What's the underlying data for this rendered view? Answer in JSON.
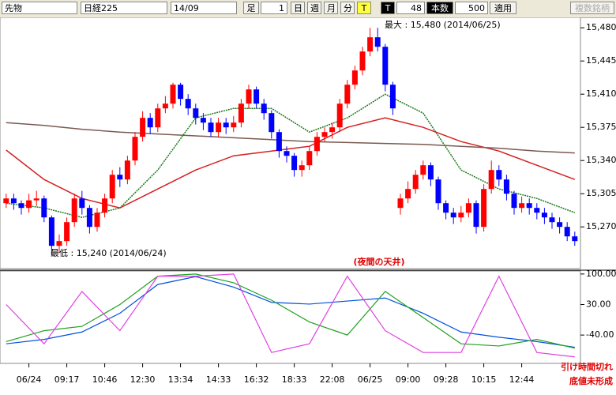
{
  "toolbar": {
    "market": "先物",
    "index": "日経225",
    "month": "14/09",
    "bar_label": "足",
    "bar_count": "1",
    "day": "日",
    "week": "週",
    "month_btn": "月",
    "minute": "分",
    "tick": "T",
    "t_label": "T",
    "t_value": "48",
    "count_label": "本数",
    "count_value": "500",
    "apply": "適用",
    "multi": "複数銘柄"
  },
  "chart_data": [
    {
      "type": "candlestick",
      "up_color": "#ff0000",
      "down_color": "#0000ff",
      "categories": [
        null,
        null,
        null,
        "06/24",
        null,
        null,
        null,
        null,
        "09:17",
        null,
        null,
        null,
        null,
        "10:46",
        null,
        null,
        null,
        null,
        "12:30",
        null,
        null,
        null,
        null,
        "13:34",
        null,
        null,
        null,
        null,
        "14:33",
        null,
        null,
        null,
        null,
        "16:32",
        null,
        null,
        null,
        null,
        "18:33",
        null,
        null,
        null,
        null,
        "22:08",
        null,
        null,
        null,
        null,
        "06/25",
        null,
        null,
        null,
        null,
        "09:00",
        null,
        null,
        null,
        null,
        "09:28",
        null,
        null,
        null,
        null,
        "10:15",
        null,
        null,
        null,
        null,
        "12:44",
        null,
        null,
        null,
        null,
        null,
        null,
        null
      ],
      "open": [
        15295,
        15300,
        15295,
        15290,
        15298,
        15300,
        15280,
        15250,
        15255,
        15275,
        15300,
        15290,
        15270,
        15285,
        15300,
        15325,
        15320,
        15340,
        15365,
        15385,
        15375,
        15395,
        15400,
        15420,
        15405,
        15395,
        15385,
        15380,
        15370,
        15380,
        15375,
        15380,
        15400,
        15415,
        15400,
        15390,
        15370,
        15350,
        15345,
        15330,
        15335,
        15350,
        15365,
        15370,
        15375,
        15400,
        15420,
        15435,
        15455,
        15470,
        15460,
        15420,
        15290,
        15300,
        15310,
        15325,
        15335,
        15320,
        15295,
        15285,
        15280,
        15285,
        15295,
        15270,
        15310,
        15330,
        15320,
        15305,
        15290,
        15295,
        15290,
        15285,
        15280,
        15275,
        15270,
        15260
      ],
      "high": [
        15305,
        15305,
        15298,
        15305,
        15308,
        15303,
        15282,
        15262,
        15280,
        15305,
        15308,
        15293,
        15290,
        15305,
        15330,
        15333,
        15345,
        15370,
        15392,
        15390,
        15400,
        15408,
        15422,
        15422,
        15410,
        15400,
        15390,
        15385,
        15385,
        15385,
        15387,
        15405,
        15420,
        15418,
        15405,
        15393,
        15373,
        15355,
        15348,
        15340,
        15355,
        15370,
        15375,
        15380,
        15405,
        15425,
        15440,
        15460,
        15480,
        15480,
        15463,
        15423,
        15305,
        15318,
        15330,
        15340,
        15338,
        15323,
        15298,
        15290,
        15292,
        15300,
        15298,
        15315,
        15340,
        15335,
        15325,
        15308,
        15302,
        15300,
        15295,
        15290,
        15285,
        15280,
        15275,
        15265
      ],
      "low": [
        15290,
        15288,
        15283,
        15285,
        15292,
        15275,
        15240,
        15243,
        15250,
        15270,
        15283,
        15263,
        15265,
        15280,
        15295,
        15312,
        15315,
        15335,
        15360,
        15368,
        15370,
        15390,
        15395,
        15398,
        15388,
        15378,
        15372,
        15365,
        15365,
        15368,
        15370,
        15375,
        15395,
        15395,
        15383,
        15363,
        15343,
        15338,
        15323,
        15323,
        15330,
        15345,
        15360,
        15363,
        15370,
        15395,
        15415,
        15430,
        15450,
        15455,
        15413,
        15388,
        15283,
        15295,
        15305,
        15320,
        15313,
        15288,
        15278,
        15273,
        15275,
        15280,
        15263,
        15265,
        15305,
        15313,
        15298,
        15283,
        15285,
        15283,
        15278,
        15273,
        15268,
        15263,
        15255,
        15250
      ],
      "close": [
        15300,
        15295,
        15290,
        15298,
        15300,
        15280,
        15250,
        15255,
        15275,
        15300,
        15290,
        15270,
        15285,
        15300,
        15325,
        15320,
        15340,
        15365,
        15385,
        15375,
        15395,
        15400,
        15420,
        15405,
        15395,
        15385,
        15380,
        15370,
        15380,
        15375,
        15380,
        15400,
        15415,
        15400,
        15390,
        15370,
        15350,
        15345,
        15330,
        15335,
        15350,
        15365,
        15370,
        15375,
        15400,
        15420,
        15435,
        15455,
        15470,
        15460,
        15420,
        15395,
        15300,
        15310,
        15325,
        15335,
        15320,
        15295,
        15285,
        15280,
        15285,
        15295,
        15270,
        15310,
        15330,
        15320,
        15305,
        15290,
        15295,
        15290,
        15285,
        15280,
        15275,
        15270,
        15260,
        15255
      ],
      "line_x": [
        0,
        5,
        10,
        15,
        20,
        25,
        30,
        35,
        40,
        45,
        50,
        55,
        60,
        65,
        70,
        75
      ],
      "lines": [
        {
          "color": "#1a7a1a",
          "values": [
            15295,
            15290,
            15280,
            15290,
            15330,
            15385,
            15395,
            15395,
            15370,
            15385,
            15410,
            15390,
            15330,
            15310,
            15300,
            15285
          ]
        },
        {
          "color": "#d42020",
          "values": [
            15351,
            15320,
            15300,
            15290,
            15310,
            15330,
            15345,
            15350,
            15355,
            15375,
            15385,
            15375,
            15360,
            15350,
            15335,
            15320
          ]
        },
        {
          "color": "#7a5a50",
          "values": [
            15380,
            15377,
            15373,
            15370,
            15368,
            15366,
            15364,
            15362,
            15360,
            15359,
            15358,
            15357,
            15355,
            15353,
            15350,
            15348
          ]
        }
      ],
      "ylim": [
        15226,
        15491
      ],
      "yticks": [
        {
          "value": 15480,
          "label": "15,480"
        },
        {
          "value": 15445,
          "label": "15,445"
        },
        {
          "value": 15410,
          "label": "15,410"
        },
        {
          "value": 15375,
          "label": "15,375"
        },
        {
          "value": 15340,
          "label": "15,340"
        },
        {
          "value": 15305,
          "label": "15,305"
        },
        {
          "value": 15270,
          "label": "15,270"
        }
      ],
      "annotations": {
        "max": "最大 : 15,480 (2014/06/25)",
        "min": "最低 : 15,240 (2014/06/24)",
        "night_top": "(夜間の天井)"
      }
    },
    {
      "type": "line",
      "x": [
        0,
        5,
        10,
        15,
        20,
        25,
        30,
        35,
        40,
        45,
        50,
        55,
        60,
        65,
        70,
        75
      ],
      "series": [
        {
          "color": "#0050e0",
          "values": [
            -60,
            -50,
            -33,
            10,
            76,
            94,
            70,
            35,
            31,
            38,
            45,
            10,
            -33,
            -45,
            -55,
            -68
          ]
        },
        {
          "color": "#20a020",
          "values": [
            -55,
            -30,
            -20,
            30,
            95,
            100,
            80,
            40,
            -10,
            -40,
            60,
            0,
            -60,
            -65,
            -50,
            -70
          ]
        },
        {
          "color": "#e040e0",
          "values": [
            30,
            -60,
            60,
            -30,
            95,
            95,
            100,
            -80,
            -60,
            95,
            -30,
            -80,
            -80,
            95,
            -80,
            -90
          ]
        }
      ],
      "ylim": [
        -105,
        107
      ],
      "yticks": [
        {
          "value": 100,
          "label": "100.00"
        },
        {
          "value": 30,
          "label": "30.00"
        },
        {
          "value": -40,
          "label": "-40.00"
        }
      ],
      "annotations": {
        "note1": "引け時間切れ",
        "note2": "底値未形成"
      }
    }
  ]
}
